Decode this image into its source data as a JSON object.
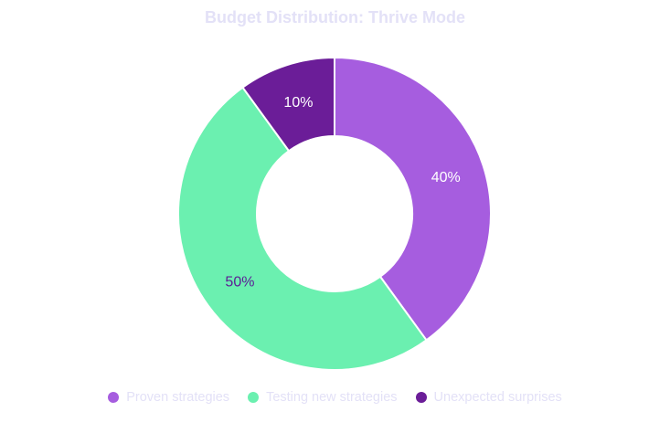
{
  "chart_data": {
    "type": "pie",
    "variant": "donut",
    "title": "Budget Distribution: Thrive Mode",
    "legend_position": "bottom",
    "slices": [
      {
        "label": "Proven strategies",
        "value": 40,
        "display": "40%",
        "color": "#a65ddf",
        "label_color": "#ffffff"
      },
      {
        "label": "Testing new strategies",
        "value": 50,
        "display": "50%",
        "color": "#6bf0b0",
        "label_color": "#5b1d95"
      },
      {
        "label": "Unexpected surprises",
        "value": 10,
        "display": "10%",
        "color": "#6b1d98",
        "label_color": "#ffffff"
      }
    ]
  },
  "colors": {
    "title": "#e3e1f7",
    "legend_text": "#e3e1f7",
    "slice_border": "#ffffff"
  }
}
